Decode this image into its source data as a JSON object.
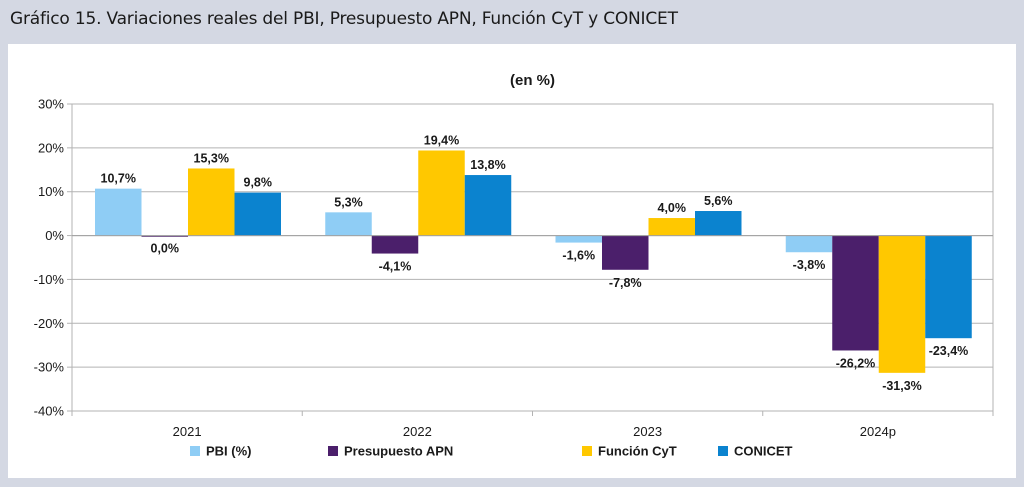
{
  "header": {
    "title": "Gráfico 15. Variaciones reales del PBI, Presupuesto APN, Función CyT y CONICET"
  },
  "chart_data": {
    "type": "bar",
    "subtitle": "(en %)",
    "categories": [
      "2021",
      "2022",
      "2023",
      "2024p"
    ],
    "series": [
      {
        "name": "PBI (%)",
        "color": "#8fcdf5",
        "values": [
          10.7,
          5.3,
          -1.6,
          -3.8
        ],
        "labels": [
          "10,7%",
          "5,3%",
          "-1,6%",
          "-3,8%"
        ]
      },
      {
        "name": "Presupuesto APN",
        "color": "#4b1f6b",
        "values": [
          0.0,
          -4.1,
          -7.8,
          -26.2
        ],
        "labels": [
          "0,0%",
          "-4,1%",
          "-7,8%",
          "-26,2%"
        ]
      },
      {
        "name": "Función CyT",
        "color": "#ffc800",
        "values": [
          15.3,
          19.4,
          4.0,
          -31.3
        ],
        "labels": [
          "15,3%",
          "19,4%",
          "4,0%",
          "-31,3%"
        ]
      },
      {
        "name": "CONICET",
        "color": "#0b83cf",
        "values": [
          9.8,
          13.8,
          5.6,
          -23.4
        ],
        "labels": [
          "9,8%",
          "13,8%",
          "5,6%",
          "-23,4%"
        ]
      }
    ],
    "yticks": [
      30,
      20,
      10,
      0,
      -10,
      -20,
      -30,
      -40
    ],
    "ytick_labels": [
      "30%",
      "20%",
      "10%",
      "0%",
      "-10%",
      "-20%",
      "-30%",
      "-40%"
    ],
    "ylim": [
      -40,
      30
    ],
    "grid": true,
    "legend_position": "bottom"
  }
}
